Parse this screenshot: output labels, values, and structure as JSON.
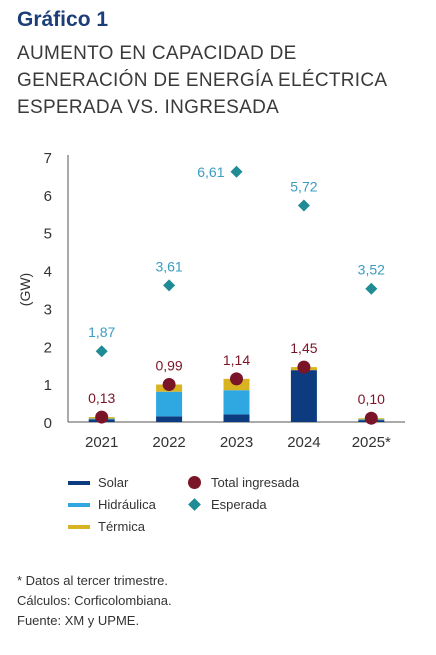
{
  "heading": "Gráfico 1",
  "title_lines": [
    "AUMENTO EN CAPACIDAD DE",
    "GENERACIÓN DE ENERGÍA ELÉCTRICA",
    "ESPERADA VS. INGRESADA"
  ],
  "legend": {
    "solar": "Solar",
    "hidraulica": "Hidráulica",
    "termica": "Térmica",
    "total": "Total ingresada",
    "esperada": "Esperada"
  },
  "notes": [
    "* Datos al tercer trimestre.",
    "Cálculos: Corficolombiana.",
    "Fuente: XM y UPME."
  ],
  "colors": {
    "solar": "#0d3b80",
    "hidraulica": "#2fa7e0",
    "termica": "#d9b422",
    "total": "#7a1528",
    "esperada": "#1e8b95",
    "esperada_label": "#3a9cc0",
    "total_label": "#7a1528"
  },
  "chart_data": {
    "type": "bar",
    "categories": [
      "2021",
      "2022",
      "2023",
      "2024",
      "2025*"
    ],
    "ylabel": "(GW)",
    "ylim": [
      0,
      7
    ],
    "yticks": [
      "0",
      "1",
      "2",
      "3",
      "4",
      "5",
      "6",
      "7"
    ],
    "series": [
      {
        "name": "Solar",
        "kind": "stacked-bar",
        "values": [
          0.07,
          0.15,
          0.2,
          1.37,
          0.05
        ]
      },
      {
        "name": "Hidráulica",
        "kind": "stacked-bar",
        "values": [
          0.02,
          0.65,
          0.64,
          0.0,
          0.02
        ]
      },
      {
        "name": "Térmica",
        "kind": "stacked-bar",
        "values": [
          0.04,
          0.19,
          0.3,
          0.08,
          0.03
        ]
      },
      {
        "name": "Total ingresada",
        "kind": "point",
        "values": [
          0.13,
          0.99,
          1.14,
          1.45,
          0.1
        ],
        "labels": [
          "0,13",
          "0,99",
          "1,14",
          "1,45",
          "0,10"
        ]
      },
      {
        "name": "Esperada",
        "kind": "point",
        "values": [
          1.87,
          3.61,
          6.61,
          5.72,
          3.52
        ],
        "labels": [
          "1,87",
          "3,61",
          "6,61",
          "5,72",
          "3,52"
        ]
      }
    ]
  }
}
